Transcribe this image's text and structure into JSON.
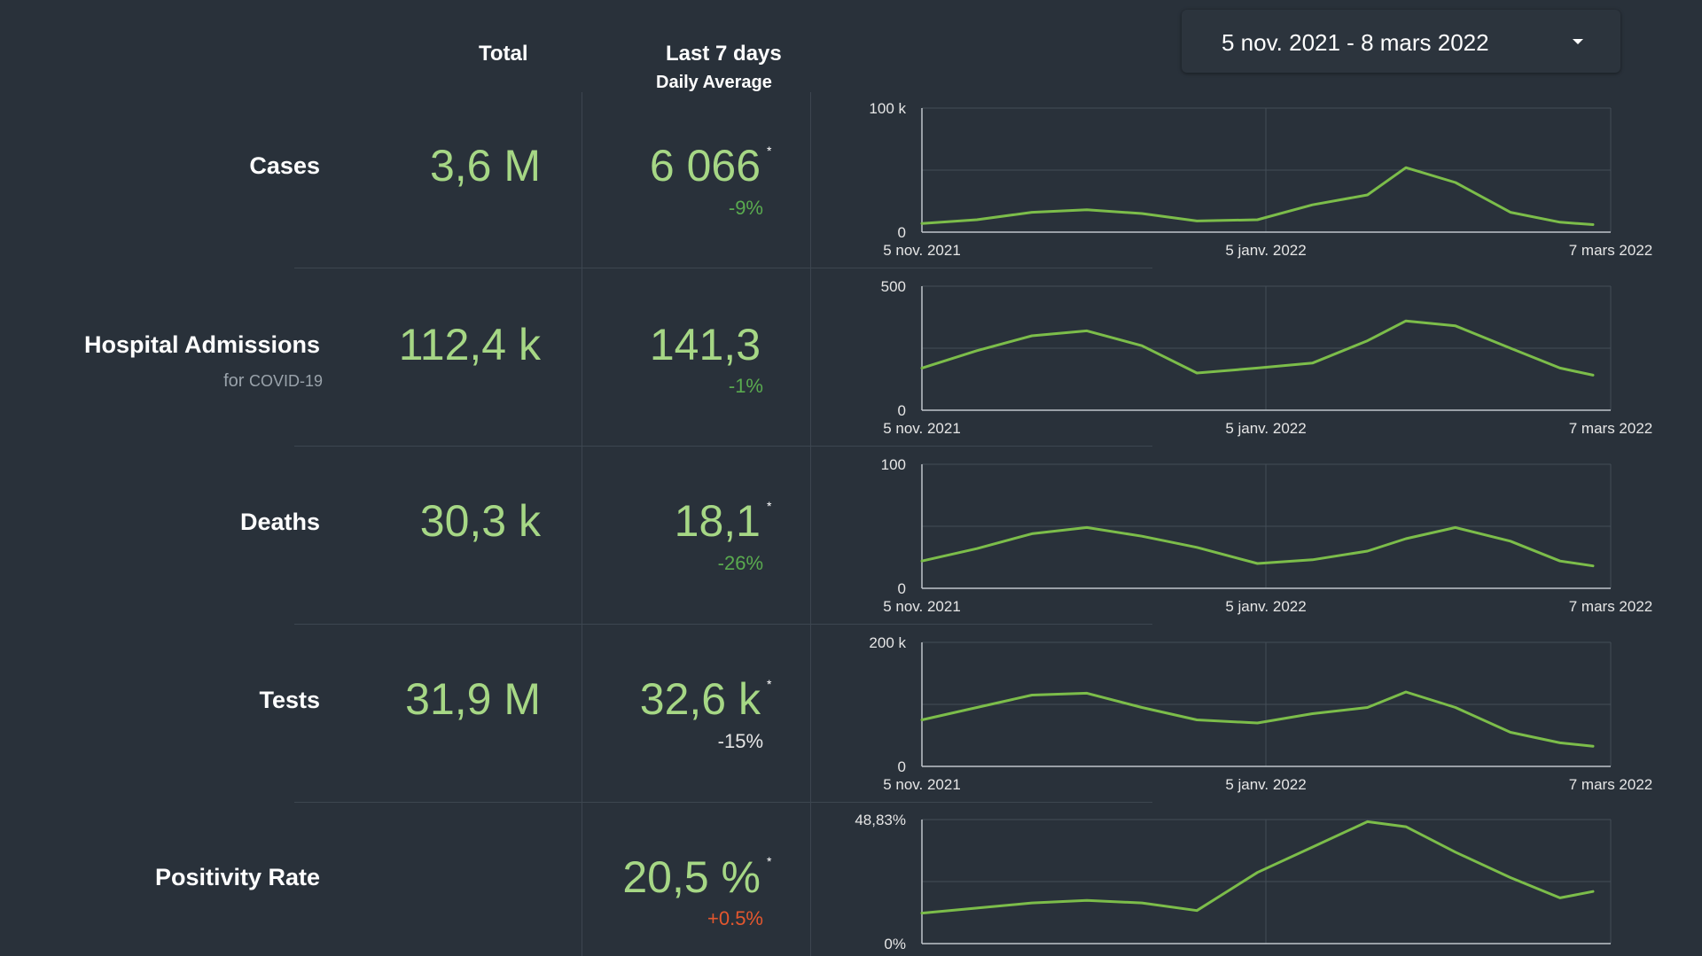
{
  "header": {
    "total_label": "Total",
    "last7_label": "Last 7 days",
    "daily_avg_label": "Daily Average"
  },
  "date_range": {
    "value": "5 nov. 2021 - 8 mars 2022",
    "icon": "chevron-down-icon"
  },
  "colors": {
    "background": "#29313a",
    "value_green": "#a6d785",
    "line_green": "#7cbd4a",
    "pct_down": "#5aab4f",
    "pct_neutral": "#e6e6e6",
    "pct_up": "#e4572e"
  },
  "metrics": [
    {
      "label": "Cases",
      "total": "3,6 M",
      "avg": "6 066",
      "star": "*",
      "pct": "-9%"
    },
    {
      "label": "Hospital Admissions",
      "sub_prefix": "for",
      "sub_suffix": "COVID-19",
      "total": "112,4 k",
      "avg": "141,3",
      "star": "",
      "pct": "-1%"
    },
    {
      "label": "Deaths",
      "total": "30,3 k",
      "avg": "18,1",
      "star": "*",
      "pct": "-26%"
    },
    {
      "label": "Tests",
      "total": "31,9 M",
      "avg": "32,6 k",
      "star": "*",
      "pct": "-15%"
    },
    {
      "label": "Positivity Rate",
      "total": "",
      "avg": "20,5 %",
      "star": "*",
      "pct": "+0.5%"
    }
  ],
  "chart_data": [
    {
      "type": "line",
      "name": "cases",
      "x_labels": [
        "5 nov. 2021",
        "5 janv. 2022",
        "7 mars 2022"
      ],
      "y_tick_labels": [
        "0",
        "100 k"
      ],
      "ylim": [
        0,
        100000
      ],
      "grid": true,
      "x": [
        "2021-11-05",
        "2021-11-15",
        "2021-11-25",
        "2021-12-05",
        "2021-12-15",
        "2021-12-25",
        "2022-01-05",
        "2022-01-15",
        "2022-01-25",
        "2022-02-01",
        "2022-02-10",
        "2022-02-20",
        "2022-03-01",
        "2022-03-07"
      ],
      "values": [
        7000,
        10000,
        16000,
        18000,
        15000,
        9000,
        10000,
        22000,
        30000,
        52000,
        40000,
        16000,
        8000,
        6066
      ]
    },
    {
      "type": "line",
      "name": "hospital_admissions",
      "x_labels": [
        "5 nov. 2021",
        "5 janv. 2022",
        "7 mars 2022"
      ],
      "y_tick_labels": [
        "0",
        "500"
      ],
      "ylim": [
        0,
        500
      ],
      "grid": true,
      "x": [
        "2021-11-05",
        "2021-11-15",
        "2021-11-25",
        "2021-12-05",
        "2021-12-15",
        "2021-12-25",
        "2022-01-05",
        "2022-01-15",
        "2022-01-25",
        "2022-02-01",
        "2022-02-10",
        "2022-02-20",
        "2022-03-01",
        "2022-03-07"
      ],
      "values": [
        170,
        240,
        300,
        320,
        260,
        150,
        170,
        190,
        280,
        360,
        340,
        250,
        170,
        141.3
      ]
    },
    {
      "type": "line",
      "name": "deaths",
      "x_labels": [
        "5 nov. 2021",
        "5 janv. 2022",
        "7 mars 2022"
      ],
      "y_tick_labels": [
        "0",
        "100"
      ],
      "ylim": [
        0,
        100
      ],
      "grid": true,
      "x": [
        "2021-11-05",
        "2021-11-15",
        "2021-11-25",
        "2021-12-05",
        "2021-12-15",
        "2021-12-25",
        "2022-01-05",
        "2022-01-15",
        "2022-01-25",
        "2022-02-01",
        "2022-02-10",
        "2022-02-20",
        "2022-03-01",
        "2022-03-07"
      ],
      "values": [
        22,
        32,
        44,
        49,
        42,
        33,
        20,
        23,
        30,
        40,
        49,
        38,
        22,
        18.1
      ]
    },
    {
      "type": "line",
      "name": "tests",
      "x_labels": [
        "5 nov. 2021",
        "5 janv. 2022",
        "7 mars 2022"
      ],
      "y_tick_labels": [
        "0",
        "200 k"
      ],
      "ylim": [
        0,
        200000
      ],
      "grid": true,
      "x": [
        "2021-11-05",
        "2021-11-15",
        "2021-11-25",
        "2021-12-05",
        "2021-12-15",
        "2021-12-25",
        "2022-01-05",
        "2022-01-15",
        "2022-01-25",
        "2022-02-01",
        "2022-02-10",
        "2022-02-20",
        "2022-03-01",
        "2022-03-07"
      ],
      "values": [
        75000,
        95000,
        115000,
        118000,
        95000,
        75000,
        70000,
        85000,
        95000,
        120000,
        95000,
        55000,
        38000,
        32600
      ]
    },
    {
      "type": "line",
      "name": "positivity_rate",
      "x_labels": [
        "5 nov. 2021",
        "5 janv. 2022",
        "7 mars 2022"
      ],
      "y_tick_labels": [
        "0%",
        "48,83%"
      ],
      "ylim": [
        0,
        48.83
      ],
      "grid": true,
      "x": [
        "2021-11-05",
        "2021-11-15",
        "2021-11-25",
        "2021-12-05",
        "2021-12-15",
        "2021-12-25",
        "2022-01-05",
        "2022-01-15",
        "2022-01-25",
        "2022-02-01",
        "2022-02-10",
        "2022-02-20",
        "2022-03-01",
        "2022-03-07"
      ],
      "values": [
        12,
        14,
        16,
        17,
        16,
        13,
        28,
        38,
        48,
        46,
        36,
        26,
        18,
        20.5
      ]
    }
  ]
}
